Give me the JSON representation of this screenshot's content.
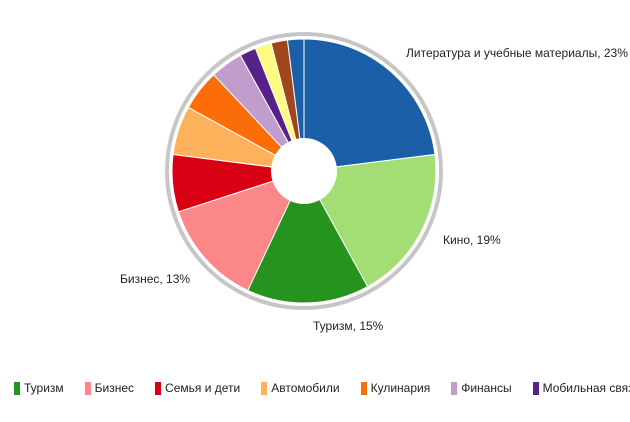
{
  "chart_data": {
    "type": "pie",
    "donut": true,
    "slices": [
      {
        "name": "Литература и учебные материалы",
        "value": 23,
        "color": "#1a5fa8",
        "label": "Литература и учебные материалы, 23%"
      },
      {
        "name": "Кино",
        "value": 19,
        "color": "#a3de74",
        "label": "Кино, 19%"
      },
      {
        "name": "Туризм",
        "value": 15,
        "color": "#27931f",
        "label": "Туризм, 15%"
      },
      {
        "name": "Бизнес",
        "value": 13,
        "color": "#fb8788",
        "label": "Бизнес, 13%"
      },
      {
        "name": "Семья и дети",
        "value": 7,
        "color": "#d80012",
        "label": ""
      },
      {
        "name": "Автомобили",
        "value": 6,
        "color": "#fdb15a",
        "label": ""
      },
      {
        "name": "Кулинария",
        "value": 5,
        "color": "#fc6d0a",
        "label": ""
      },
      {
        "name": "Финансы",
        "value": 4,
        "color": "#c09dcd",
        "label": ""
      },
      {
        "name": "Мобильная связь и",
        "value": 2,
        "color": "#572187",
        "label": ""
      },
      {
        "name": "",
        "value": 2,
        "color": "#fdfb82",
        "label": ""
      },
      {
        "name": "",
        "value": 2,
        "color": "#a1461b",
        "label": ""
      },
      {
        "name": "",
        "value": 2,
        "color": "#1a5fa8",
        "label": ""
      }
    ],
    "legend": [
      "Туризм",
      "Бизнес",
      "Семья и дети",
      "Автомобили",
      "Кулинария",
      "Финансы",
      "Мобильная связь и"
    ],
    "legend_colors": [
      "#27931f",
      "#fb8788",
      "#d80012",
      "#fdb15a",
      "#fc6d0a",
      "#c09dcd",
      "#572187"
    ],
    "legend_position": "bottom"
  }
}
